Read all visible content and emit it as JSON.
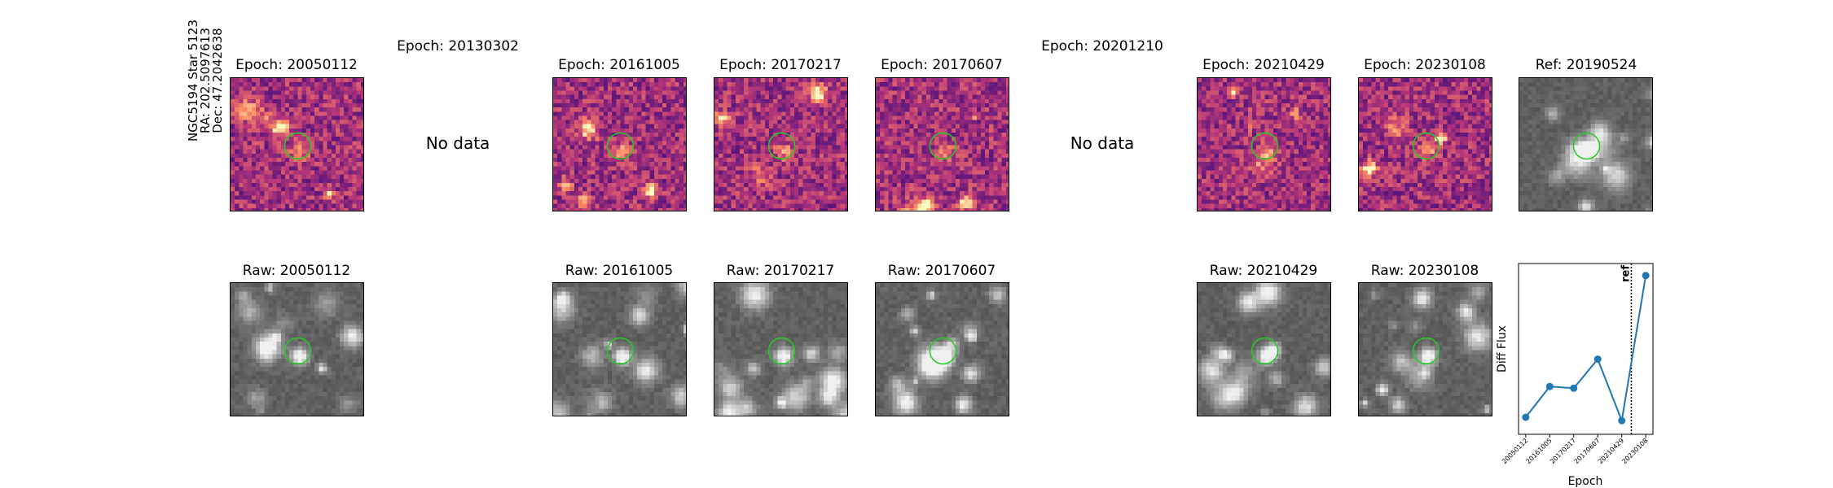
{
  "star": {
    "line1": "NGC5194 Star 5123",
    "line2": "RA: 202.5097613",
    "line3": "Dec: 47.2042638"
  },
  "diff_titles": [
    "Epoch: 20050112",
    "Epoch: 20130302",
    "Epoch: 20161005",
    "Epoch: 20170217",
    "Epoch: 20170607",
    "Epoch: 20201210",
    "Epoch: 20210429",
    "Epoch: 20230108"
  ],
  "ref_title": "Ref: 20190524",
  "no_data_label": "No data",
  "raw_titles": [
    "Raw: 20050112",
    "Raw: 20161005",
    "Raw: 20170217",
    "Raw: 20170607",
    "Raw: 20210429",
    "Raw: 20230108"
  ],
  "colors": {
    "aperture": "#22cc22",
    "series": "#1f77b4"
  },
  "chart_data": {
    "type": "line",
    "x": [
      "20050112",
      "20161005",
      "20170217",
      "20170607",
      "20210429",
      "20230108"
    ],
    "values": [
      0.1,
      0.28,
      0.27,
      0.44,
      0.08,
      0.93
    ],
    "ylim": [
      0,
      1
    ],
    "xlabel": "Epoch",
    "ylabel": "Diff Flux",
    "ref_line": {
      "x": 4.4,
      "label": "ref"
    }
  }
}
